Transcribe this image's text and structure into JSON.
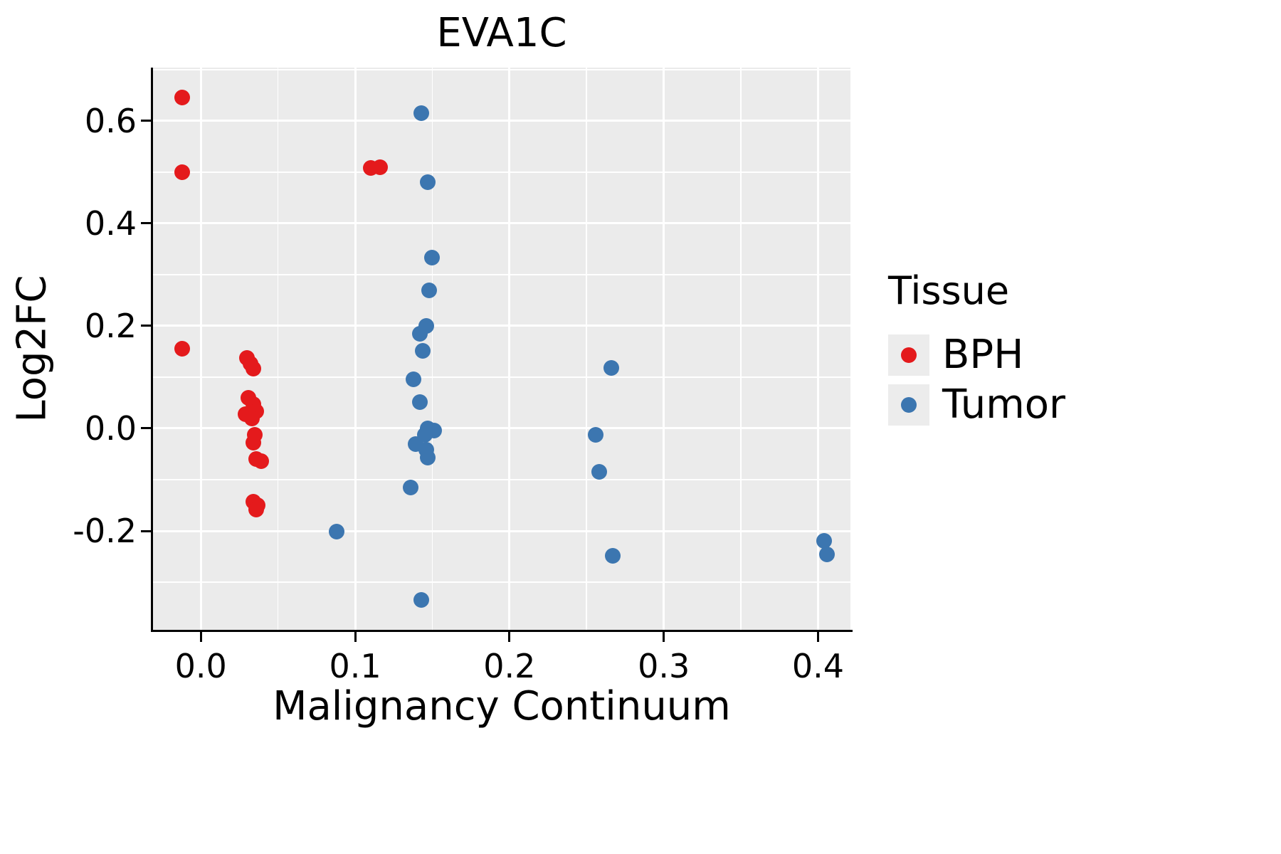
{
  "chart_data": {
    "type": "scatter",
    "title": "EVA1C",
    "xlabel": "Malignancy Continuum",
    "ylabel": "Log2FC",
    "legend": {
      "title": "Tissue",
      "position": "right",
      "entries": [
        "BPH",
        "Tumor"
      ]
    },
    "xlim": [
      -0.031,
      0.421
    ],
    "ylim": [
      -0.393,
      0.704
    ],
    "x_ticks": [
      0.0,
      0.1,
      0.2,
      0.3,
      0.4
    ],
    "x_tick_labels": [
      "0.0",
      "0.1",
      "0.2",
      "0.3",
      "0.4"
    ],
    "y_ticks": [
      -0.2,
      0.0,
      0.2,
      0.4,
      0.6
    ],
    "y_tick_labels": [
      "-0.2",
      "0.0",
      "0.2",
      "0.4",
      "0.6"
    ],
    "x_minor_gridlines": [
      0.05,
      0.15,
      0.25,
      0.35
    ],
    "y_minor_gridlines": [
      -0.3,
      -0.1,
      0.1,
      0.3,
      0.5,
      0.7
    ],
    "grid": true,
    "panel_background": "#EBEBEB",
    "gridline_color": "#FFFFFF",
    "axis_color": "#000000",
    "point_diameter": 22,
    "series": [
      {
        "name": "BPH",
        "color": "#E41A1C",
        "points": [
          [
            -0.012,
            0.645
          ],
          [
            -0.012,
            0.5
          ],
          [
            -0.012,
            0.155
          ],
          [
            0.11,
            0.508
          ],
          [
            0.116,
            0.51
          ],
          [
            0.03,
            0.138
          ],
          [
            0.032,
            0.127
          ],
          [
            0.034,
            0.117
          ],
          [
            0.031,
            0.06
          ],
          [
            0.034,
            0.047
          ],
          [
            0.029,
            0.028
          ],
          [
            0.036,
            0.033
          ],
          [
            0.033,
            0.02
          ],
          [
            0.035,
            -0.012
          ],
          [
            0.034,
            -0.028
          ],
          [
            0.036,
            -0.06
          ],
          [
            0.039,
            -0.064
          ],
          [
            0.034,
            -0.143
          ],
          [
            0.037,
            -0.15
          ],
          [
            0.036,
            -0.158
          ]
        ]
      },
      {
        "name": "Tumor",
        "color": "#3C76B0",
        "points": [
          [
            0.143,
            0.615
          ],
          [
            0.147,
            0.48
          ],
          [
            0.15,
            0.333
          ],
          [
            0.148,
            0.27
          ],
          [
            0.146,
            0.2
          ],
          [
            0.142,
            0.184
          ],
          [
            0.144,
            0.151
          ],
          [
            0.138,
            0.096
          ],
          [
            0.142,
            0.051
          ],
          [
            0.147,
            0.0
          ],
          [
            0.151,
            -0.004
          ],
          [
            0.145,
            -0.013
          ],
          [
            0.139,
            -0.03
          ],
          [
            0.146,
            -0.041
          ],
          [
            0.147,
            -0.057
          ],
          [
            0.136,
            -0.115
          ],
          [
            0.088,
            -0.202
          ],
          [
            0.143,
            -0.335
          ],
          [
            0.266,
            0.118
          ],
          [
            0.256,
            -0.012
          ],
          [
            0.258,
            -0.085
          ],
          [
            0.267,
            -0.248
          ],
          [
            0.404,
            -0.22
          ],
          [
            0.406,
            -0.246
          ]
        ]
      }
    ]
  }
}
